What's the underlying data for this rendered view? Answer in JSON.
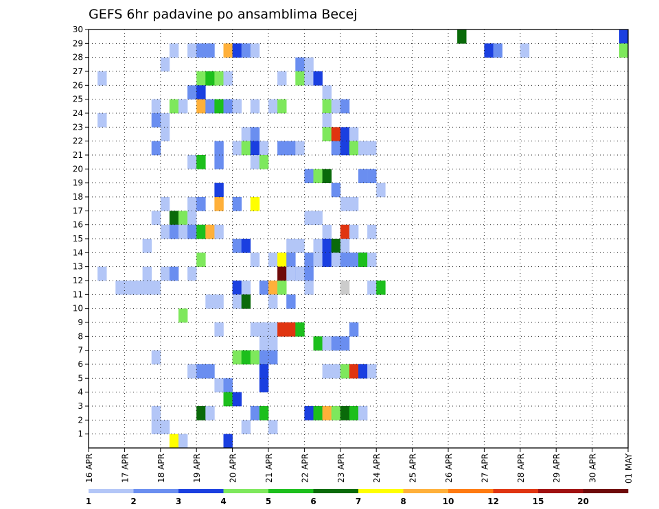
{
  "chart_data": {
    "type": "heatmap",
    "title": "GEFS 6hr padavine po ansamblima Becej",
    "xlabel": "",
    "ylabel": "",
    "x_tick_labels": [
      "16 APR",
      "17 APR",
      "18 APR",
      "19 APR",
      "20 APR",
      "21 APR",
      "22 APR",
      "23 APR",
      "24 APR",
      "25 APR",
      "26 APR",
      "27 APR",
      "28 APR",
      "29 APR",
      "30 APR",
      "01 MAY"
    ],
    "y_tick_labels": [
      "1",
      "2",
      "3",
      "4",
      "5",
      "6",
      "7",
      "8",
      "9",
      "10",
      "11",
      "12",
      "13",
      "14",
      "15",
      "16",
      "17",
      "18",
      "19",
      "20",
      "21",
      "22",
      "23",
      "24",
      "25",
      "26",
      "27",
      "28",
      "29",
      "30"
    ],
    "x_range_days": [
      0,
      15
    ],
    "y_range": [
      0,
      30
    ],
    "time_step_hours": 6,
    "grid": true,
    "legend_position": "bottom",
    "legend": {
      "thresholds": [
        "1",
        "2",
        "3",
        "4",
        "5",
        "6",
        "7",
        "8",
        "10",
        "12",
        "15",
        "20"
      ],
      "colors": [
        "#b3c6f7",
        "#6a8ef0",
        "#1a3fe0",
        "#7ee85c",
        "#1cbf1c",
        "#0a6a0a",
        "#ffff00",
        "#ffb03a",
        "#ff7a10",
        "#e03410",
        "#a01010",
        "#6e0a0a"
      ]
    },
    "cells": [
      [
        30,
        41,
        6
      ],
      [
        30,
        59,
        3
      ],
      [
        29,
        9,
        1
      ],
      [
        29,
        11,
        1
      ],
      [
        29,
        12,
        2
      ],
      [
        29,
        13,
        2
      ],
      [
        29,
        15,
        8
      ],
      [
        29,
        16,
        3
      ],
      [
        29,
        17,
        2
      ],
      [
        29,
        18,
        1
      ],
      [
        29,
        44,
        3
      ],
      [
        29,
        45,
        2
      ],
      [
        29,
        48,
        1
      ],
      [
        29,
        59,
        4
      ],
      [
        28,
        8,
        1
      ],
      [
        28,
        23,
        2
      ],
      [
        28,
        24,
        1
      ],
      [
        27,
        1,
        1
      ],
      [
        27,
        12,
        4
      ],
      [
        27,
        13,
        5
      ],
      [
        27,
        14,
        4
      ],
      [
        27,
        15,
        1
      ],
      [
        27,
        21,
        1
      ],
      [
        27,
        23,
        4
      ],
      [
        27,
        24,
        1
      ],
      [
        27,
        25,
        3
      ],
      [
        26,
        11,
        2
      ],
      [
        26,
        12,
        3
      ],
      [
        26,
        26,
        1
      ],
      [
        25,
        7,
        1
      ],
      [
        25,
        9,
        4
      ],
      [
        25,
        10,
        1
      ],
      [
        25,
        12,
        8
      ],
      [
        25,
        13,
        2
      ],
      [
        25,
        14,
        5
      ],
      [
        25,
        15,
        2
      ],
      [
        25,
        16,
        1
      ],
      [
        25,
        18,
        1
      ],
      [
        25,
        20,
        1
      ],
      [
        25,
        21,
        4
      ],
      [
        25,
        26,
        4
      ],
      [
        25,
        27,
        1
      ],
      [
        25,
        28,
        2
      ],
      [
        24,
        1,
        1
      ],
      [
        24,
        7,
        2
      ],
      [
        24,
        8,
        1
      ],
      [
        24,
        26,
        1
      ],
      [
        23,
        8,
        1
      ],
      [
        23,
        17,
        1
      ],
      [
        23,
        18,
        2
      ],
      [
        23,
        26,
        4
      ],
      [
        23,
        27,
        10
      ],
      [
        23,
        28,
        3
      ],
      [
        23,
        29,
        1
      ],
      [
        22,
        7,
        2
      ],
      [
        22,
        14,
        2
      ],
      [
        22,
        16,
        1
      ],
      [
        22,
        17,
        4
      ],
      [
        22,
        18,
        3
      ],
      [
        22,
        19,
        1
      ],
      [
        22,
        21,
        2
      ],
      [
        22,
        22,
        2
      ],
      [
        22,
        23,
        1
      ],
      [
        22,
        27,
        2
      ],
      [
        22,
        28,
        3
      ],
      [
        22,
        29,
        4
      ],
      [
        22,
        30,
        1
      ],
      [
        22,
        31,
        1
      ],
      [
        21,
        11,
        1
      ],
      [
        21,
        12,
        5
      ],
      [
        21,
        14,
        2
      ],
      [
        21,
        18,
        1
      ],
      [
        21,
        19,
        4
      ],
      [
        20,
        24,
        2
      ],
      [
        20,
        25,
        4
      ],
      [
        20,
        26,
        6
      ],
      [
        20,
        30,
        2
      ],
      [
        20,
        31,
        2
      ],
      [
        19,
        14,
        3
      ],
      [
        19,
        27,
        2
      ],
      [
        19,
        32,
        1
      ],
      [
        18,
        8,
        1
      ],
      [
        18,
        11,
        1
      ],
      [
        18,
        12,
        2
      ],
      [
        18,
        14,
        8
      ],
      [
        18,
        16,
        2
      ],
      [
        18,
        18,
        7
      ],
      [
        18,
        28,
        1
      ],
      [
        18,
        29,
        1
      ],
      [
        17,
        7,
        1
      ],
      [
        17,
        9,
        6
      ],
      [
        17,
        10,
        4
      ],
      [
        17,
        11,
        1
      ],
      [
        17,
        24,
        1
      ],
      [
        17,
        25,
        1
      ],
      [
        16,
        8,
        1
      ],
      [
        16,
        9,
        2
      ],
      [
        16,
        10,
        1
      ],
      [
        16,
        11,
        2
      ],
      [
        16,
        12,
        5
      ],
      [
        16,
        13,
        8
      ],
      [
        16,
        14,
        1
      ],
      [
        16,
        26,
        1
      ],
      [
        16,
        28,
        10
      ],
      [
        16,
        29,
        1
      ],
      [
        16,
        31,
        1
      ],
      [
        15,
        6,
        1
      ],
      [
        15,
        16,
        2
      ],
      [
        15,
        17,
        3
      ],
      [
        15,
        22,
        1
      ],
      [
        15,
        23,
        1
      ],
      [
        15,
        25,
        1
      ],
      [
        15,
        26,
        3
      ],
      [
        15,
        27,
        6
      ],
      [
        15,
        28,
        1
      ],
      [
        14,
        12,
        4
      ],
      [
        14,
        18,
        1
      ],
      [
        14,
        20,
        1
      ],
      [
        14,
        21,
        7
      ],
      [
        14,
        22,
        2
      ],
      [
        14,
        24,
        2
      ],
      [
        14,
        25,
        1
      ],
      [
        14,
        25,
        1
      ],
      [
        14,
        26,
        3
      ],
      [
        14,
        27,
        1
      ],
      [
        14,
        28,
        2
      ],
      [
        14,
        29,
        2
      ],
      [
        14,
        30,
        3
      ],
      [
        14,
        30,
        5
      ],
      [
        14,
        31,
        1
      ],
      [
        13,
        1,
        1
      ],
      [
        13,
        6,
        1
      ],
      [
        13,
        8,
        1
      ],
      [
        13,
        9,
        2
      ],
      [
        13,
        11,
        1
      ],
      [
        13,
        21,
        12
      ],
      [
        13,
        22,
        1
      ],
      [
        13,
        23,
        2
      ],
      [
        13,
        23,
        1
      ],
      [
        13,
        24,
        2
      ],
      [
        12,
        3,
        1
      ],
      [
        12,
        4,
        1
      ],
      [
        12,
        5,
        1
      ],
      [
        12,
        6,
        1
      ],
      [
        12,
        7,
        1
      ],
      [
        12,
        16,
        3
      ],
      [
        12,
        17,
        1
      ],
      [
        12,
        19,
        2
      ],
      [
        12,
        20,
        8
      ],
      [
        12,
        21,
        4
      ],
      [
        12,
        24,
        1
      ],
      [
        12,
        28,
        15
      ],
      [
        12,
        31,
        1
      ],
      [
        12,
        32,
        5
      ],
      [
        11,
        13,
        1
      ],
      [
        11,
        14,
        1
      ],
      [
        11,
        16,
        1
      ],
      [
        11,
        17,
        6
      ],
      [
        11,
        20,
        1
      ],
      [
        11,
        22,
        2
      ],
      [
        10,
        10,
        4
      ],
      [
        9,
        14,
        1
      ],
      [
        9,
        18,
        1
      ],
      [
        9,
        19,
        1
      ],
      [
        9,
        20,
        1
      ],
      [
        9,
        21,
        10
      ],
      [
        9,
        22,
        10
      ],
      [
        9,
        23,
        5
      ],
      [
        9,
        29,
        2
      ],
      [
        8,
        19,
        1
      ],
      [
        8,
        20,
        1
      ],
      [
        8,
        25,
        5
      ],
      [
        8,
        26,
        1
      ],
      [
        8,
        27,
        2
      ],
      [
        8,
        28,
        2
      ],
      [
        7,
        7,
        1
      ],
      [
        7,
        16,
        4
      ],
      [
        7,
        17,
        5
      ],
      [
        7,
        18,
        4
      ],
      [
        7,
        19,
        2
      ],
      [
        7,
        20,
        2
      ],
      [
        6,
        11,
        1
      ],
      [
        6,
        12,
        2
      ],
      [
        6,
        13,
        2
      ],
      [
        6,
        19,
        3
      ],
      [
        6,
        26,
        1
      ],
      [
        6,
        27,
        1
      ],
      [
        6,
        28,
        4
      ],
      [
        6,
        29,
        10
      ],
      [
        6,
        30,
        3
      ],
      [
        6,
        31,
        1
      ],
      [
        5,
        14,
        1
      ],
      [
        5,
        15,
        2
      ],
      [
        5,
        19,
        3
      ],
      [
        4,
        15,
        5
      ],
      [
        4,
        16,
        3
      ],
      [
        3,
        7,
        1
      ],
      [
        3,
        12,
        6
      ],
      [
        3,
        13,
        1
      ],
      [
        3,
        18,
        2
      ],
      [
        3,
        19,
        5
      ],
      [
        3,
        24,
        3
      ],
      [
        3,
        25,
        5
      ],
      [
        3,
        26,
        8
      ],
      [
        3,
        27,
        4
      ],
      [
        3,
        28,
        6
      ],
      [
        3,
        29,
        5
      ],
      [
        3,
        30,
        1
      ],
      [
        2,
        7,
        1
      ],
      [
        2,
        8,
        1
      ],
      [
        2,
        17,
        1
      ],
      [
        2,
        20,
        1
      ],
      [
        1,
        9,
        7
      ],
      [
        1,
        10,
        1
      ],
      [
        1,
        15,
        3
      ]
    ]
  }
}
